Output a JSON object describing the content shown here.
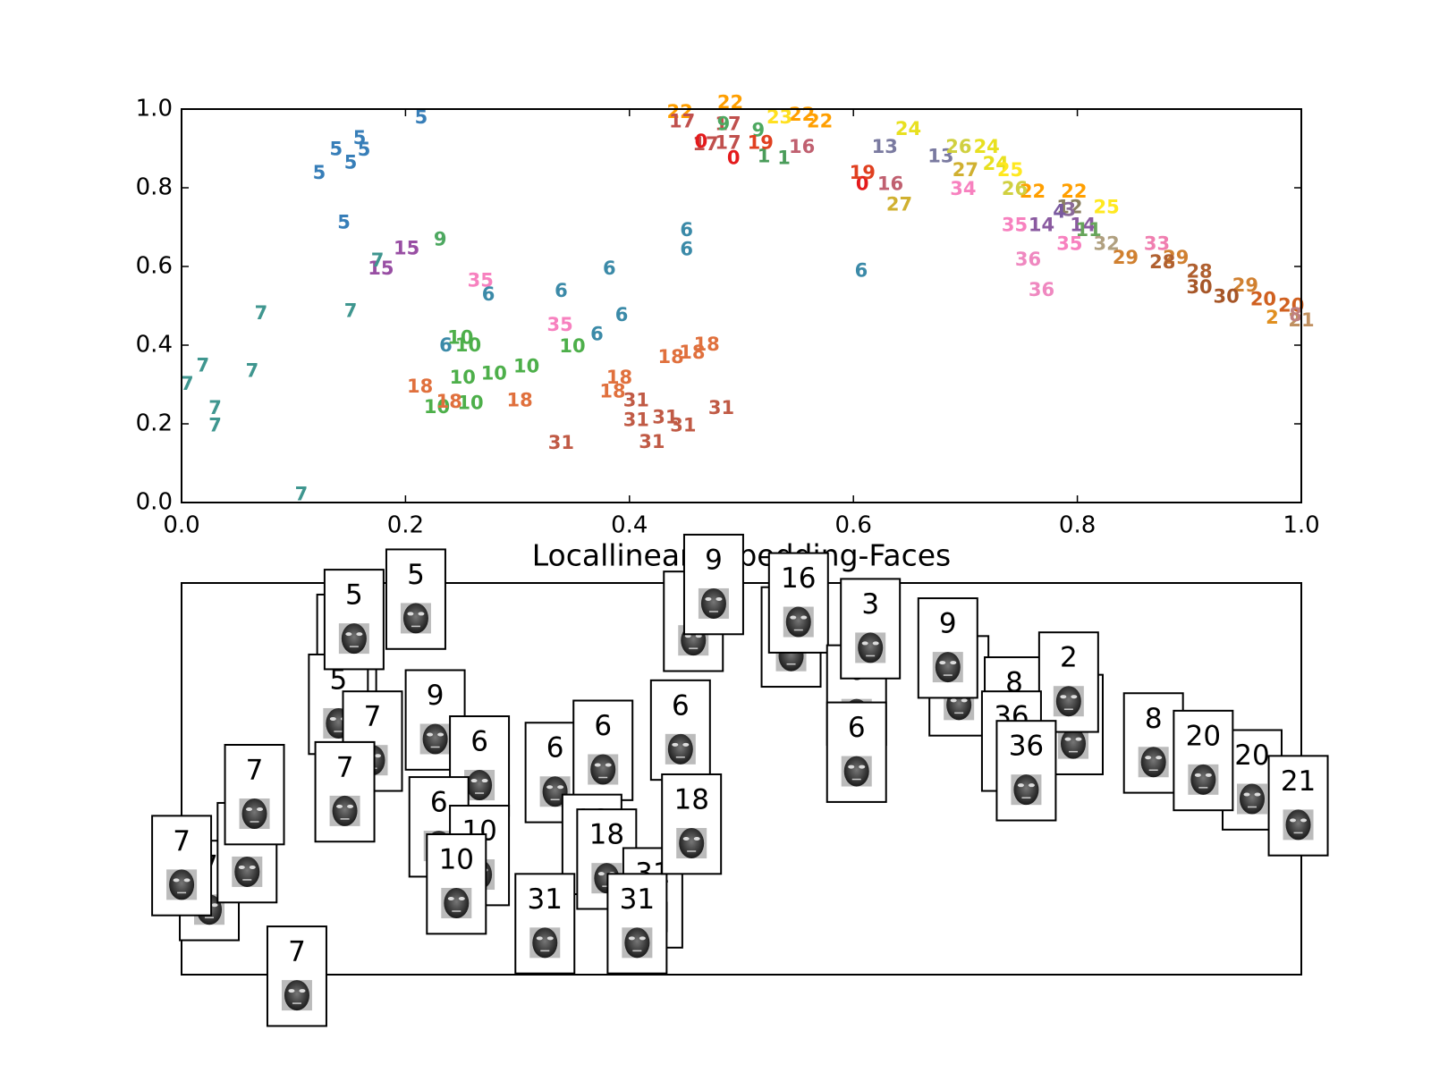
{
  "chart_data": [
    {
      "type": "text-scatter",
      "xlim": [
        0,
        1
      ],
      "ylim": [
        0,
        1
      ],
      "xticks": [
        {
          "value": 0,
          "label": "0.0"
        },
        {
          "value": 0.2,
          "label": "0.2"
        },
        {
          "value": 0.4,
          "label": "0.4"
        },
        {
          "value": 0.6,
          "label": "0.6"
        },
        {
          "value": 0.8,
          "label": "0.8"
        },
        {
          "value": 1,
          "label": "1.0"
        }
      ],
      "yticks": [
        {
          "value": 0,
          "label": "0.0"
        },
        {
          "value": 0.2,
          "label": "0.2"
        },
        {
          "value": 0.4,
          "label": "0.4"
        },
        {
          "value": 0.6,
          "label": "0.6"
        },
        {
          "value": 0.8,
          "label": "0.8"
        },
        {
          "value": 1,
          "label": "1.0"
        }
      ],
      "label_colors": {
        "0": "#e41a1c",
        "1": "#4a9c5a",
        "2": "#e08f20",
        "3": "#8a6a9a",
        "4": "#7a5aa0",
        "5": "#377eb8",
        "6": "#3b8aa8",
        "7": "#3f968f",
        "8": "#c08080",
        "9": "#4da860",
        "10": "#4daf4a",
        "11": "#66a55a",
        "12": "#8a8060",
        "13": "#7a7aa0",
        "14": "#8a5aa0",
        "15": "#984ea3",
        "16": "#c06070",
        "17": "#c0504d",
        "18": "#e0703d",
        "19": "#e04020",
        "20": "#d06020",
        "21": "#c09060",
        "22": "#ff9f00",
        "23": "#ffe020",
        "24": "#e8e020",
        "25": "#ffe820",
        "26": "#d0d040",
        "27": "#d0b030",
        "28": "#b06030",
        "29": "#d08030",
        "30": "#a65628",
        "31": "#c05a45",
        "32": "#b0a080",
        "33": "#f07fb0",
        "34": "#f781bf",
        "35": "#f781bf",
        "36": "#ef88c0"
      },
      "labels": [
        "5",
        "5",
        "5",
        "5",
        "5",
        "5",
        "5",
        "9",
        "15",
        "15",
        "7",
        "7",
        "7",
        "7",
        "7",
        "7",
        "7",
        "7",
        "7",
        "35",
        "35",
        "6",
        "6",
        "6",
        "6",
        "6",
        "6",
        "6",
        "6",
        "6",
        "10",
        "10",
        "10",
        "10",
        "10",
        "10",
        "10",
        "10",
        "18",
        "18",
        "18",
        "18",
        "18",
        "18",
        "18",
        "18",
        "31",
        "31",
        "31",
        "31",
        "31",
        "31",
        "31",
        "22",
        "22",
        "22",
        "22",
        "22",
        "22",
        "17",
        "17",
        "17",
        "17",
        "0",
        "0",
        "0",
        "9",
        "9",
        "1",
        "1",
        "19",
        "19",
        "23",
        "16",
        "16",
        "24",
        "24",
        "24",
        "13",
        "13",
        "26",
        "26",
        "27",
        "27",
        "25",
        "25",
        "34",
        "35",
        "35",
        "36",
        "36",
        "14",
        "14",
        "12",
        "11",
        "32",
        "29",
        "29",
        "29",
        "33",
        "28",
        "28",
        "30",
        "30",
        "20",
        "20",
        "21",
        "2",
        "3",
        "4",
        "8"
      ],
      "x": [
        0.214,
        0.159,
        0.138,
        0.163,
        0.151,
        0.123,
        0.145,
        0.231,
        0.201,
        0.178,
        0.175,
        0.071,
        0.151,
        0.019,
        0.063,
        0.005,
        0.03,
        0.03,
        0.107,
        0.267,
        0.338,
        0.274,
        0.339,
        0.382,
        0.393,
        0.371,
        0.451,
        0.451,
        0.607,
        0.236,
        0.249,
        0.256,
        0.349,
        0.308,
        0.279,
        0.251,
        0.228,
        0.258,
        0.213,
        0.239,
        0.302,
        0.391,
        0.385,
        0.437,
        0.456,
        0.469,
        0.406,
        0.432,
        0.406,
        0.448,
        0.482,
        0.339,
        0.42,
        0.445,
        0.49,
        0.554,
        0.57,
        0.76,
        0.797,
        0.447,
        0.488,
        0.488,
        0.468,
        0.464,
        0.493,
        0.608,
        0.484,
        0.515,
        0.52,
        0.538,
        0.517,
        0.608,
        0.534,
        0.554,
        0.633,
        0.649,
        0.719,
        0.727,
        0.628,
        0.678,
        0.694,
        0.744,
        0.641,
        0.7,
        0.826,
        0.74,
        0.698,
        0.744,
        0.793,
        0.756,
        0.768,
        0.768,
        0.805,
        0.793,
        0.81,
        0.826,
        0.843,
        0.888,
        0.95,
        0.871,
        0.876,
        0.909,
        0.909,
        0.933,
        0.966,
        0.991,
        1.0,
        0.974,
        0.793,
        0.784,
        0.995
      ],
      "values": [
        0.977,
        0.925,
        0.897,
        0.895,
        0.862,
        0.836,
        0.71,
        0.667,
        0.644,
        0.593,
        0.614,
        0.48,
        0.485,
        0.347,
        0.333,
        0.3,
        0.239,
        0.194,
        0.019,
        0.562,
        0.45,
        0.527,
        0.536,
        0.593,
        0.475,
        0.426,
        0.691,
        0.642,
        0.588,
        0.398,
        0.417,
        0.398,
        0.396,
        0.344,
        0.326,
        0.316,
        0.241,
        0.251,
        0.293,
        0.255,
        0.258,
        0.316,
        0.281,
        0.368,
        0.379,
        0.4,
        0.258,
        0.215,
        0.208,
        0.194,
        0.239,
        0.15,
        0.152,
        0.991,
        1.015,
        0.984,
        0.967,
        0.789,
        0.789,
        0.967,
        0.96,
        0.913,
        0.909,
        0.916,
        0.874,
        0.808,
        0.96,
        0.944,
        0.878,
        0.874,
        0.913,
        0.836,
        0.977,
        0.902,
        0.808,
        0.948,
        0.902,
        0.859,
        0.902,
        0.878,
        0.902,
        0.796,
        0.756,
        0.843,
        0.749,
        0.843,
        0.796,
        0.703,
        0.656,
        0.616,
        0.539,
        0.703,
        0.703,
        0.749,
        0.691,
        0.656,
        0.621,
        0.621,
        0.55,
        0.656,
        0.609,
        0.585,
        0.546,
        0.522,
        0.515,
        0.499,
        0.461,
        0.468,
        0.742,
        0.738,
        0.475
      ]
    },
    {
      "type": "thumbnails",
      "title": "Locallinearembedding-Faces",
      "labels": [
        "5",
        "5",
        "5",
        "5",
        "7",
        "7",
        "7",
        "7",
        "7",
        "7",
        "7",
        "9",
        "6",
        "6",
        "10",
        "10",
        "6",
        "6",
        "18",
        "18",
        "31",
        "31",
        "31",
        "6",
        "18",
        "9",
        "9",
        "16",
        "16",
        "6",
        "3",
        "6",
        "9",
        "9",
        "8",
        "2",
        "2",
        "36",
        "36",
        "8",
        "20",
        "20",
        "21"
      ]
    }
  ]
}
